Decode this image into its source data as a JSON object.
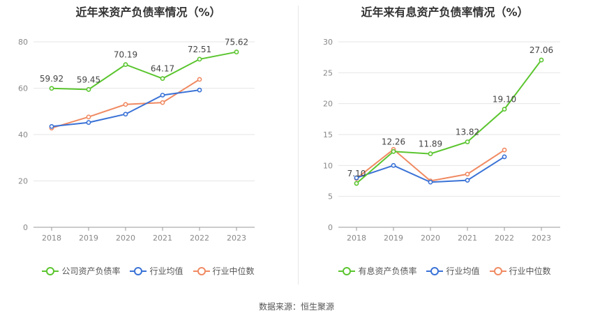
{
  "source_label": "数据来源：恒生聚源",
  "chart_data": [
    {
      "type": "line",
      "title": "近年来资产负债率情况（%）",
      "categories": [
        "2018",
        "2019",
        "2020",
        "2021",
        "2022",
        "2023"
      ],
      "ylim": [
        0,
        80
      ],
      "yticks": [
        0,
        20,
        40,
        60,
        80
      ],
      "grid": true,
      "legend_position": "bottom",
      "series": [
        {
          "name": "公司资产负债率",
          "color": "#5ac52e",
          "values": [
            59.92,
            59.45,
            70.19,
            64.17,
            72.51,
            75.62
          ],
          "labels": [
            "59.92",
            "59.45",
            "70.19",
            "64.17",
            "72.51",
            "75.62"
          ]
        },
        {
          "name": "行业均值",
          "color": "#3a72d6",
          "values": [
            43.5,
            45.2,
            48.8,
            57.0,
            59.2,
            null
          ],
          "labels": []
        },
        {
          "name": "行业中位数",
          "color": "#f08a62",
          "values": [
            42.8,
            47.6,
            53.0,
            53.8,
            63.8,
            null
          ],
          "labels": []
        }
      ]
    },
    {
      "type": "line",
      "title": "近年来有息资产负债率情况（%）",
      "categories": [
        "2018",
        "2019",
        "2020",
        "2021",
        "2022",
        "2023"
      ],
      "ylim": [
        0,
        30
      ],
      "yticks": [
        0,
        5,
        10,
        15,
        20,
        25,
        30
      ],
      "grid": true,
      "legend_position": "bottom",
      "series": [
        {
          "name": "有息资产负债率",
          "color": "#5ac52e",
          "values": [
            7.1,
            12.26,
            11.89,
            13.82,
            19.1,
            27.06
          ],
          "labels": [
            "7.10",
            "12.26",
            "11.89",
            "13.82",
            "19.10",
            "27.06"
          ]
        },
        {
          "name": "行业均值",
          "color": "#3a72d6",
          "values": [
            8.0,
            10.0,
            7.3,
            7.6,
            11.4,
            null
          ],
          "labels": []
        },
        {
          "name": "行业中位数",
          "color": "#f08a62",
          "values": [
            7.9,
            12.6,
            7.5,
            8.6,
            12.5,
            null
          ],
          "labels": []
        }
      ]
    }
  ]
}
